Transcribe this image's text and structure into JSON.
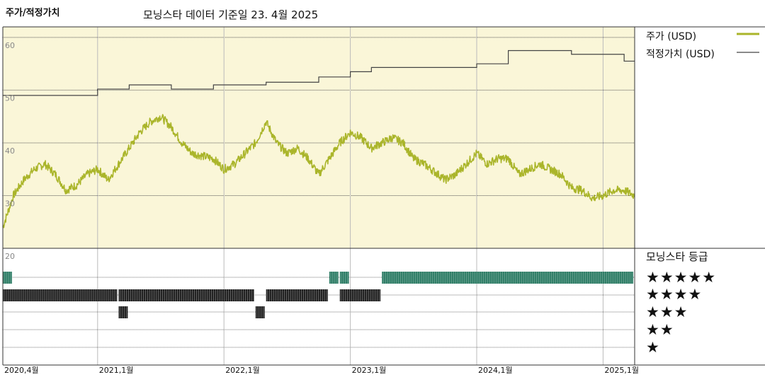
{
  "header": {
    "title": "주가/적정가치",
    "subtitle": "모닝스타 데이터 기준일 23. 4월 2025"
  },
  "legend": {
    "price_label": "주가 (USD)",
    "fair_value_label": "적정가치 (USD)"
  },
  "rating_panel": {
    "title": "모닝스타 등급",
    "stars": [
      "★★★★★",
      "★★★★",
      "★★★",
      "★★",
      "★"
    ]
  },
  "colors": {
    "plot_background": "#faf6d8",
    "price_line": "#aab52a",
    "fair_value_line": "#444444",
    "five_star": "#2e7d66",
    "four_star": "#222222",
    "three_star": "#222222"
  },
  "chart_data": {
    "type": "line",
    "x_axis": {
      "range": [
        "2020-04",
        "2025-04"
      ],
      "tick_labels": [
        "2020,4월",
        "2021,1월",
        "2022,1월",
        "2023,1월",
        "2024,1월",
        "2025,1월"
      ],
      "tick_dates": [
        "2020-04",
        "2021-01",
        "2022-01",
        "2023-01",
        "2024-01",
        "2025-01"
      ]
    },
    "y_axis": {
      "range": [
        20,
        62
      ],
      "tick_labels": [
        "20",
        "30",
        "40",
        "50",
        "60"
      ],
      "tick_values": [
        20,
        30,
        40,
        50,
        60
      ]
    },
    "series": [
      {
        "name": "주가 (USD)",
        "points": [
          [
            "2020-04",
            24
          ],
          [
            "2020-05",
            30
          ],
          [
            "2020-06",
            33
          ],
          [
            "2020-07",
            35
          ],
          [
            "2020-08",
            36
          ],
          [
            "2020-09",
            34
          ],
          [
            "2020-10",
            31
          ],
          [
            "2020-11",
            32
          ],
          [
            "2020-12",
            34
          ],
          [
            "2021-01",
            35
          ],
          [
            "2021-02",
            33
          ],
          [
            "2021-03",
            36
          ],
          [
            "2021-04",
            39
          ],
          [
            "2021-05",
            42
          ],
          [
            "2021-06",
            44
          ],
          [
            "2021-07",
            45
          ],
          [
            "2021-08",
            43
          ],
          [
            "2021-09",
            40
          ],
          [
            "2021-10",
            38
          ],
          [
            "2021-11",
            37.5
          ],
          [
            "2021-12",
            37
          ],
          [
            "2022-01",
            35
          ],
          [
            "2022-02",
            36
          ],
          [
            "2022-03",
            38
          ],
          [
            "2022-04",
            40
          ],
          [
            "2022-05",
            44
          ],
          [
            "2022-06",
            40
          ],
          [
            "2022-07",
            38
          ],
          [
            "2022-08",
            39
          ],
          [
            "2022-09",
            37
          ],
          [
            "2022-10",
            34
          ],
          [
            "2022-11",
            37
          ],
          [
            "2022-12",
            40
          ],
          [
            "2023-01",
            42
          ],
          [
            "2023-02",
            41
          ],
          [
            "2023-03",
            39
          ],
          [
            "2023-04",
            40
          ],
          [
            "2023-05",
            41
          ],
          [
            "2023-06",
            40
          ],
          [
            "2023-07",
            37
          ],
          [
            "2023-08",
            36
          ],
          [
            "2023-09",
            34.5
          ],
          [
            "2023-10",
            33
          ],
          [
            "2023-11",
            34
          ],
          [
            "2023-12",
            36
          ],
          [
            "2024-01",
            38
          ],
          [
            "2024-02",
            36
          ],
          [
            "2024-03",
            37
          ],
          [
            "2024-04",
            37
          ],
          [
            "2024-05",
            34
          ],
          [
            "2024-06",
            35
          ],
          [
            "2024-07",
            36
          ],
          [
            "2024-08",
            35
          ],
          [
            "2024-09",
            34
          ],
          [
            "2024-10",
            31.5
          ],
          [
            "2024-11",
            31
          ],
          [
            "2024-12",
            29.5
          ],
          [
            "2025-01",
            30
          ],
          [
            "2025-02",
            31
          ],
          [
            "2025-03",
            31
          ],
          [
            "2025-04",
            30
          ]
        ]
      },
      {
        "name": "적정가치 (USD)",
        "step": true,
        "points": [
          [
            "2020-04",
            49
          ],
          [
            "2021-01",
            50.2
          ],
          [
            "2021-04",
            51
          ],
          [
            "2021-08",
            50.2
          ],
          [
            "2021-12",
            51
          ],
          [
            "2022-05",
            51.5
          ],
          [
            "2022-10",
            52.5
          ],
          [
            "2023-01",
            53.5
          ],
          [
            "2023-03",
            54.3
          ],
          [
            "2024-01",
            55
          ],
          [
            "2024-04",
            57.5
          ],
          [
            "2024-10",
            56.8
          ],
          [
            "2025-03",
            55.5
          ],
          [
            "2025-04",
            55.5
          ]
        ]
      }
    ],
    "rating_history": [
      {
        "rating": 5,
        "periods": [
          [
            "2020-04",
            "2020-05"
          ],
          [
            "2022-11",
            "2022-12"
          ],
          [
            "2022-12",
            "2023-01"
          ],
          [
            "2023-04",
            "2025-04"
          ]
        ]
      },
      {
        "rating": 4,
        "periods": [
          [
            "2020-04",
            "2021-03"
          ],
          [
            "2021-03",
            "2022-04"
          ],
          [
            "2022-05",
            "2022-11"
          ],
          [
            "2022-12",
            "2023-04"
          ]
        ]
      },
      {
        "rating": 3,
        "periods": [
          [
            "2021-03",
            "2021-04"
          ],
          [
            "2022-04",
            "2022-05"
          ]
        ]
      }
    ]
  }
}
